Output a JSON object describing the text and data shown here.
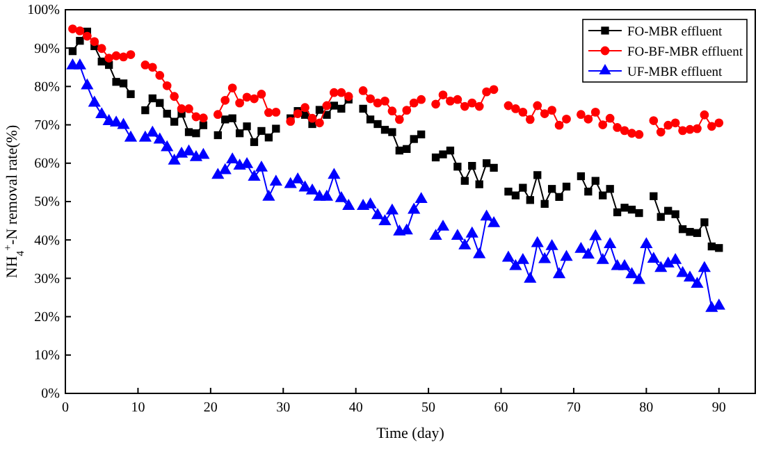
{
  "chart_data": {
    "type": "line",
    "xlabel": "Time (day)",
    "ylabel": "NH$_{4}$$^{+}$-N removal rate(%)",
    "x": [
      1,
      2,
      3,
      4,
      5,
      6,
      7,
      8,
      9,
      10,
      11,
      12,
      13,
      14,
      15,
      16,
      17,
      18,
      19,
      20,
      21,
      22,
      23,
      24,
      25,
      26,
      27,
      28,
      29,
      30,
      31,
      32,
      33,
      34,
      35,
      36,
      37,
      38,
      39,
      40,
      41,
      42,
      43,
      44,
      45,
      46,
      47,
      48,
      49,
      50,
      51,
      52,
      53,
      54,
      55,
      56,
      57,
      58,
      59,
      60,
      61,
      62,
      63,
      64,
      65,
      66,
      67,
      68,
      69,
      70,
      71,
      72,
      73,
      74,
      75,
      76,
      77,
      78,
      79,
      80,
      81,
      82,
      83,
      84,
      85,
      86,
      87,
      88,
      89,
      90
    ],
    "xlim": [
      0,
      95
    ],
    "xticks": [
      0,
      10,
      20,
      30,
      40,
      50,
      60,
      70,
      80,
      90
    ],
    "ylim": [
      0,
      100
    ],
    "yticks": [
      {
        "value": 0,
        "label": "0%"
      },
      {
        "value": 10,
        "label": "10%"
      },
      {
        "value": 20,
        "label": "20%"
      },
      {
        "value": 30,
        "label": "30%"
      },
      {
        "value": 40,
        "label": "40%"
      },
      {
        "value": 50,
        "label": "50%"
      },
      {
        "value": 60,
        "label": "60%"
      },
      {
        "value": 70,
        "label": "70%"
      },
      {
        "value": 80,
        "label": "80%"
      },
      {
        "value": 90,
        "label": "90%"
      },
      {
        "value": 100,
        "label": "100%"
      }
    ],
    "legend": "top right",
    "grid": false,
    "line_style": "solid",
    "series": [
      {
        "name": "FO-MBR effluent",
        "color": "#000000",
        "marker": "square",
        "values": [
          89.2,
          91.9,
          94.3,
          90.5,
          86.5,
          85.6,
          81.2,
          80.8,
          78.0,
          null,
          73.8,
          76.9,
          75.7,
          72.9,
          70.8,
          72.9,
          68.1,
          67.8,
          69.9,
          null,
          67.3,
          71.4,
          71.7,
          67.8,
          69.6,
          65.5,
          68.4,
          66.7,
          69.0,
          null,
          71.7,
          73.6,
          72.6,
          70.2,
          73.9,
          72.6,
          75.0,
          74.2,
          76.6,
          null,
          74.2,
          71.4,
          70.2,
          68.7,
          68.1,
          63.3,
          63.7,
          66.3,
          67.5,
          null,
          61.5,
          62.3,
          63.3,
          59.1,
          55.4,
          59.3,
          54.5,
          60.0,
          58.8,
          null,
          52.6,
          51.6,
          53.6,
          50.4,
          56.9,
          49.4,
          53.3,
          51.2,
          53.9,
          null,
          56.6,
          52.6,
          55.4,
          51.6,
          53.3,
          47.2,
          48.4,
          47.9,
          47.0,
          null,
          51.4,
          46.0,
          47.6,
          46.7,
          42.8,
          42.1,
          41.8,
          44.6,
          38.3,
          37.9
        ]
      },
      {
        "name": "FO-BF-MBR effluent",
        "color": "#ff0000",
        "marker": "circle",
        "values": [
          95.0,
          94.5,
          93.1,
          91.7,
          89.9,
          87.4,
          88.0,
          87.7,
          88.3,
          null,
          85.6,
          85.0,
          82.9,
          80.2,
          77.4,
          74.2,
          74.2,
          72.1,
          71.8,
          null,
          72.7,
          76.4,
          79.6,
          75.7,
          77.2,
          76.8,
          78.0,
          73.2,
          73.3,
          null,
          70.9,
          72.9,
          74.5,
          71.7,
          70.5,
          75.0,
          78.4,
          78.4,
          77.4,
          null,
          78.9,
          76.8,
          75.7,
          76.2,
          73.6,
          71.4,
          73.8,
          75.7,
          76.6,
          null,
          75.4,
          77.8,
          76.2,
          76.6,
          74.8,
          75.7,
          74.8,
          78.6,
          79.2,
          null,
          75.0,
          74.2,
          73.3,
          71.4,
          75.0,
          72.9,
          73.8,
          69.9,
          71.5,
          null,
          72.7,
          71.5,
          73.3,
          70.0,
          71.7,
          69.3,
          68.5,
          67.8,
          67.5,
          null,
          71.1,
          68.1,
          69.9,
          70.5,
          68.5,
          68.8,
          69.0,
          72.6,
          69.6,
          70.5
        ]
      },
      {
        "name": "UF-MBR effluent",
        "color": "#0000ff",
        "marker": "triangle",
        "values": [
          85.4,
          85.4,
          80.2,
          75.7,
          72.7,
          70.9,
          70.5,
          69.9,
          66.6,
          null,
          66.6,
          67.9,
          66.1,
          64.1,
          60.6,
          62.4,
          63.0,
          61.5,
          62.1,
          null,
          56.9,
          58.1,
          60.9,
          59.3,
          59.7,
          56.4,
          58.8,
          51.2,
          55.1,
          null,
          54.5,
          55.7,
          53.6,
          52.8,
          51.2,
          51.2,
          56.9,
          50.8,
          48.8,
          null,
          48.8,
          49.2,
          46.4,
          44.8,
          47.6,
          42.1,
          42.4,
          47.8,
          50.6,
          null,
          41.0,
          43.4,
          null,
          41.0,
          38.5,
          41.6,
          36.2,
          46.0,
          44.3,
          null,
          35.3,
          33.1,
          34.7,
          29.8,
          39.1,
          34.9,
          38.3,
          31.0,
          35.5,
          null,
          37.6,
          36.1,
          40.9,
          34.7,
          38.8,
          33.1,
          33.1,
          31.0,
          29.5,
          38.8,
          35.0,
          32.6,
          33.8,
          34.7,
          31.3,
          30.1,
          28.5,
          32.6,
          22.2,
          22.8
        ]
      }
    ]
  }
}
